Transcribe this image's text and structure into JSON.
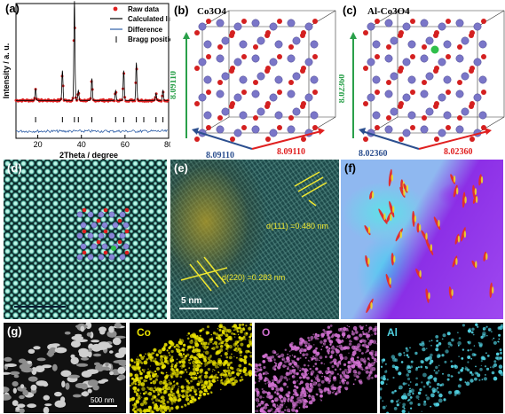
{
  "panel_labels": {
    "a": "(a)",
    "b": "(b)",
    "c": "(c)",
    "d": "(d)",
    "e": "(e)",
    "f": "(f)",
    "g": "(g)"
  },
  "xrd": {
    "ylabel": "Intensity / a. u.",
    "xlabel": "2Theta / degree",
    "xticks": [
      "20",
      "40",
      "60",
      "80"
    ],
    "legend": [
      "Raw data",
      "Calculated line",
      "Difference",
      "Bragg positions"
    ],
    "colors": {
      "raw": "#e02020",
      "calc": "#000000",
      "diff": "#2f5fa8",
      "bragg": "#000000"
    }
  },
  "chart_data": {
    "type": "line",
    "xlabel": "2Theta / degree",
    "ylabel": "Intensity / a. u.",
    "xlim": [
      10,
      80
    ],
    "series": [
      {
        "name": "Raw data",
        "x": [
          19,
          31.3,
          36.8,
          38.6,
          44.8,
          55.7,
          59.4,
          65.2,
          74.2,
          77.4
        ],
        "y": [
          0.12,
          0.3,
          1.0,
          0.1,
          0.22,
          0.1,
          0.3,
          0.38,
          0.07,
          0.1
        ]
      },
      {
        "name": "Calculated line",
        "x": [
          19,
          31.3,
          36.8,
          38.6,
          44.8,
          55.7,
          59.4,
          65.2,
          74.2,
          77.4
        ],
        "y": [
          0.12,
          0.3,
          1.0,
          0.1,
          0.22,
          0.1,
          0.3,
          0.38,
          0.07,
          0.1
        ]
      }
    ],
    "bragg_positions": [
      19,
      31.3,
      36.8,
      38.6,
      44.8,
      55.7,
      59.4,
      65.2,
      68.6,
      74.2,
      77.4
    ]
  },
  "crystal_b": {
    "title": "Co3O4",
    "a": "8.09110",
    "b": "8.09110",
    "c": "8.09110"
  },
  "crystal_c": {
    "title": "Al-Co3O4",
    "a": "8.02360",
    "b": "8.02360",
    "c": "8.02360"
  },
  "hrtem": {
    "d1": "d(111) =0.480 nm",
    "d2": "d(220) =0.283 nm",
    "scale": "5 nm"
  },
  "eds": {
    "labels": [
      "Co",
      "O",
      "Al"
    ],
    "scale": "500 nm",
    "colors": {
      "Co": "#e8e000",
      "O": "#d070d0",
      "Al": "#50d0e0"
    }
  }
}
